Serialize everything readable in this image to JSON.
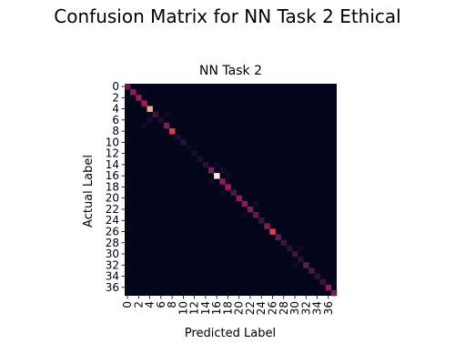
{
  "figure": {
    "suptitle": "Confusion Matrix for NN Task 2 Ethical"
  },
  "chart_data": {
    "type": "heatmap",
    "title": "NN Task 2",
    "xlabel": "Predicted Label",
    "ylabel": "Actual Label",
    "n_classes": 38,
    "x_tick_labels": [
      "0",
      "2",
      "4",
      "6",
      "8",
      "10",
      "12",
      "14",
      "16",
      "18",
      "20",
      "22",
      "24",
      "26",
      "28",
      "30",
      "32",
      "34",
      "36"
    ],
    "y_tick_labels": [
      "0",
      "2",
      "4",
      "6",
      "8",
      "10",
      "12",
      "14",
      "16",
      "18",
      "20",
      "22",
      "24",
      "26",
      "28",
      "30",
      "32",
      "34",
      "36"
    ],
    "colormap": "rocket",
    "colors": {
      "background": "#03051a",
      "low": "#03051a",
      "mid": "#a11a5b",
      "high": "#faebdd"
    },
    "colorbar": false,
    "diagonal": [
      0.3,
      0.45,
      0.5,
      0.55,
      0.9,
      0.2,
      0.1,
      0.4,
      0.7,
      0.1,
      0.15,
      0.05,
      0.08,
      0.1,
      0.15,
      0.35,
      1.0,
      0.45,
      0.55,
      0.25,
      0.45,
      0.45,
      0.4,
      0.3,
      0.2,
      0.4,
      0.7,
      0.3,
      0.2,
      0.15,
      0.2,
      0.15,
      0.3,
      0.25,
      0.15,
      0.2,
      0.45,
      0.35
    ],
    "off_diagonal": [
      {
        "row": 6,
        "col": 4,
        "value": 0.08
      },
      {
        "row": 7,
        "col": 3,
        "value": 0.06
      },
      {
        "row": 5,
        "col": 7,
        "value": 0.05
      },
      {
        "row": 15,
        "col": 17,
        "value": 0.08
      },
      {
        "row": 17,
        "col": 15,
        "value": 0.07
      },
      {
        "row": 14,
        "col": 16,
        "value": 0.05
      },
      {
        "row": 16,
        "col": 18,
        "value": 0.06
      },
      {
        "row": 19,
        "col": 17,
        "value": 0.05
      },
      {
        "row": 21,
        "col": 23,
        "value": 0.05
      },
      {
        "row": 23,
        "col": 21,
        "value": 0.04
      },
      {
        "row": 29,
        "col": 31,
        "value": 0.05
      },
      {
        "row": 32,
        "col": 30,
        "value": 0.04
      }
    ]
  }
}
